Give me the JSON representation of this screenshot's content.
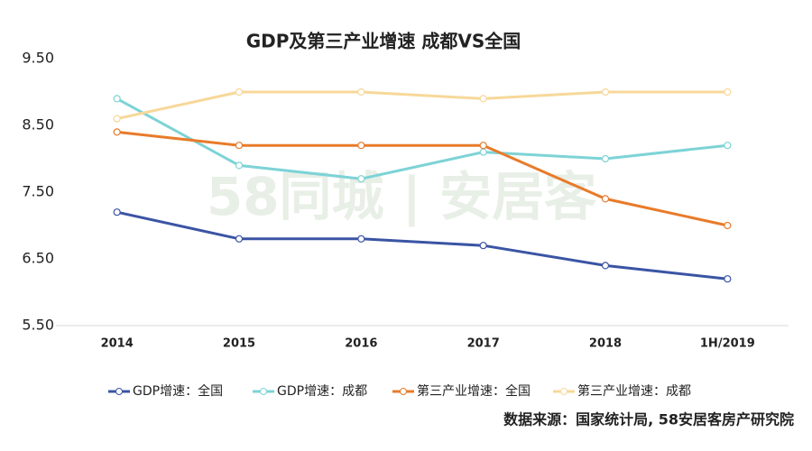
{
  "chart_data": {
    "type": "line",
    "title": "GDP及第三产业增速 成都VS全国",
    "categories": [
      "2014",
      "2015",
      "2016",
      "2017",
      "2018",
      "1H/2019"
    ],
    "series": [
      {
        "name": "GDP增速：全国",
        "color": "#3a54a4",
        "values": [
          7.2,
          6.8,
          6.8,
          6.7,
          6.4,
          6.2
        ]
      },
      {
        "name": "GDP增速：成都",
        "color": "#7dd3d6",
        "values": [
          8.9,
          7.9,
          7.7,
          8.1,
          8.0,
          8.2
        ]
      },
      {
        "name": "第三产业增速：全国",
        "color": "#e87b2a",
        "values": [
          8.4,
          8.2,
          8.2,
          8.2,
          7.4,
          7.0
        ]
      },
      {
        "name": "第三产业增速：成都",
        "color": "#f7d89a",
        "values": [
          8.6,
          9.0,
          9.0,
          8.9,
          9.0,
          9.0
        ]
      }
    ],
    "ylim": [
      5.5,
      9.5
    ],
    "yticks": [
      {
        "value": 5.5,
        "label": "5.50"
      },
      {
        "value": 6.5,
        "label": "6.50"
      },
      {
        "value": 7.5,
        "label": "7.50"
      },
      {
        "value": 8.5,
        "label": "8.50"
      },
      {
        "value": 9.5,
        "label": "9.50"
      }
    ],
    "grid": false,
    "legend": "bottom",
    "watermark": "58同城 | 安居客",
    "source": "数据来源：国家统计局, 58安居客房产研究院"
  }
}
